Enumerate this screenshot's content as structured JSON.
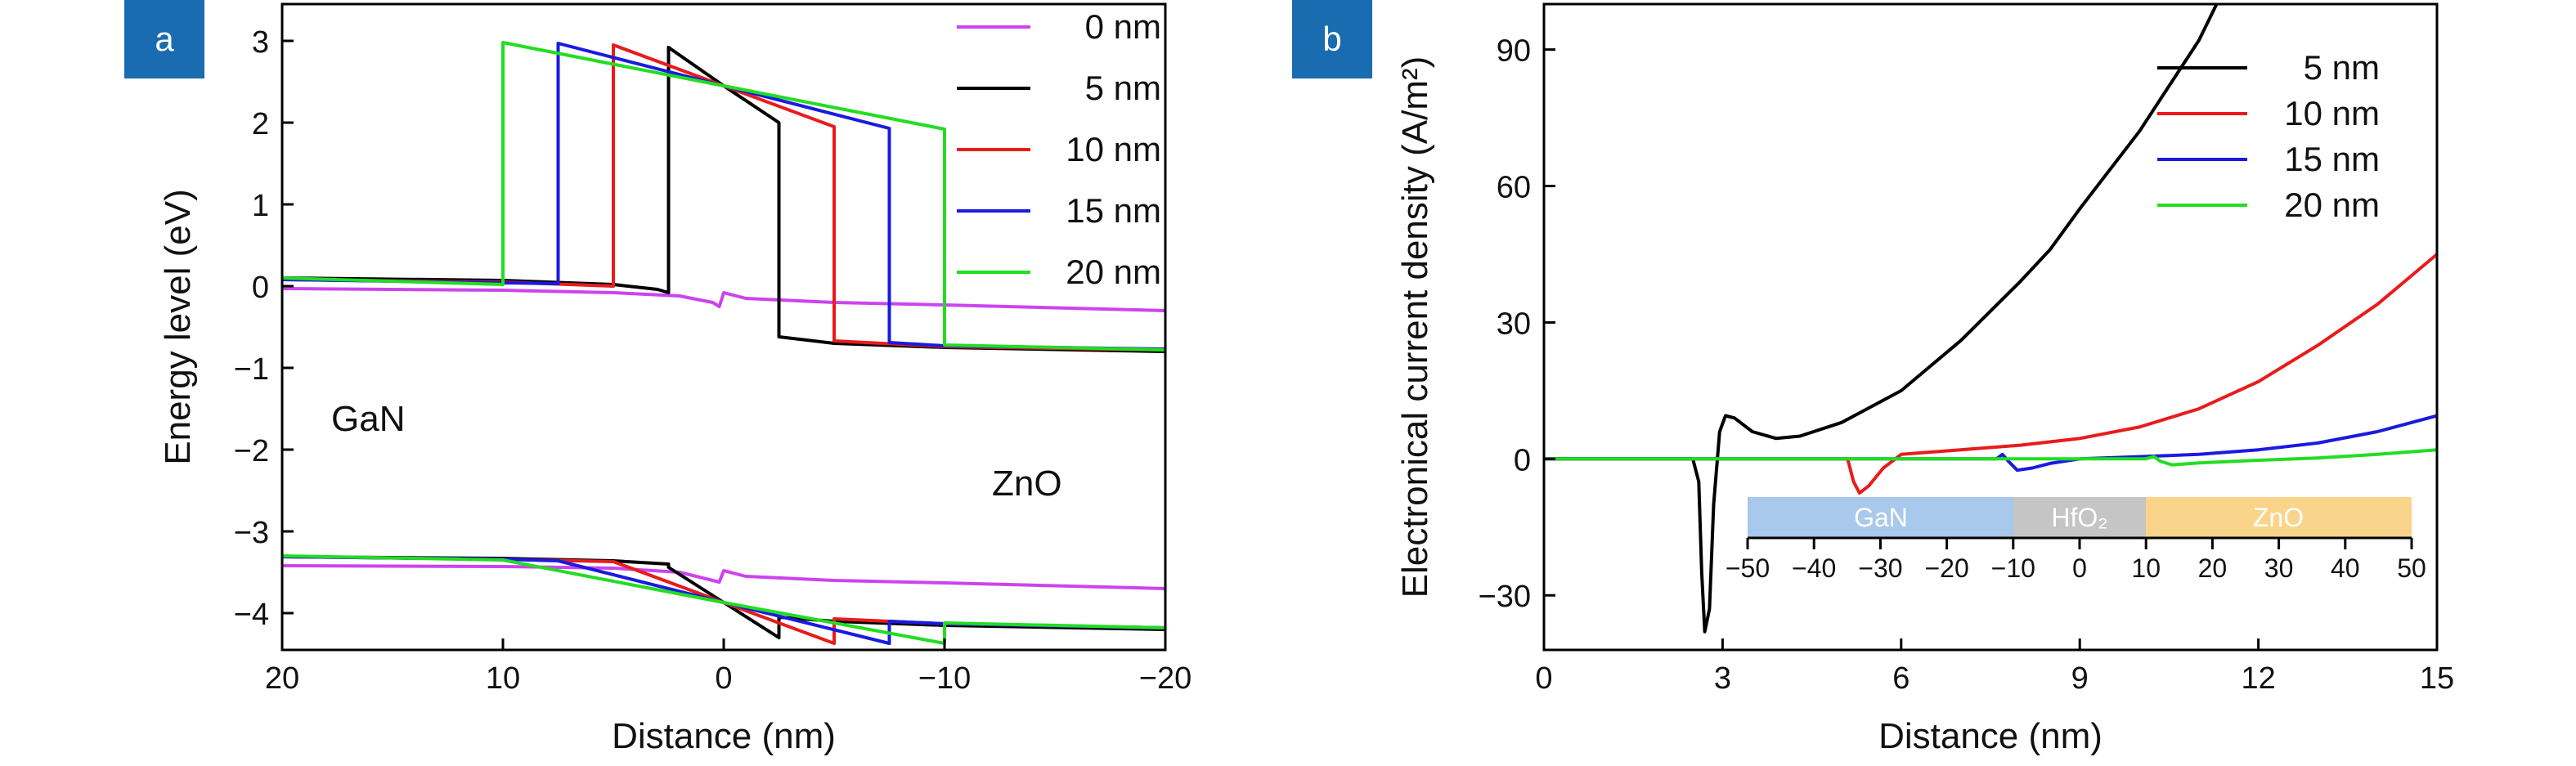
{
  "colors": {
    "badge": "#1A6CB0",
    "axis": "#000000",
    "gan_region": "#A8C8EC",
    "hfo2_region": "#C5C5C5",
    "zno_region": "#FAD48A"
  },
  "panel_a": {
    "badge": "a",
    "xlabel": "Distance (nm)",
    "ylabel": "Energy level (eV)",
    "left_material": "GaN",
    "right_material": "ZnO",
    "xticks": [
      "20",
      "10",
      "0",
      "−10",
      "−20"
    ],
    "yticks": [
      "3",
      "2",
      "1",
      "0",
      "−1",
      "−2",
      "−3",
      "−4"
    ],
    "legend": [
      {
        "label": "0 nm",
        "color": "#CC44EE"
      },
      {
        "label": "5 nm",
        "color": "#000000"
      },
      {
        "label": "10 nm",
        "color": "#E81C1C"
      },
      {
        "label": "15 nm",
        "color": "#1A1AE0"
      },
      {
        "label": "20 nm",
        "color": "#22DD22"
      }
    ]
  },
  "panel_b": {
    "badge": "b",
    "xlabel": "Distance (nm)",
    "ylabel": "Electronical current density (A/m²)",
    "xticks": [
      "0",
      "3",
      "6",
      "9",
      "12",
      "15"
    ],
    "yticks": [
      "90",
      "60",
      "30",
      "0",
      "−30"
    ],
    "legend": [
      {
        "label": "5 nm",
        "color": "#000000"
      },
      {
        "label": "10 nm",
        "color": "#E81C1C"
      },
      {
        "label": "15 nm",
        "color": "#1A1AE0"
      },
      {
        "label": "20 nm",
        "color": "#22DD22"
      }
    ],
    "inset": {
      "regions": [
        "GaN",
        "HfO₂",
        "ZnO"
      ],
      "ticks": [
        "−50",
        "−40",
        "−30",
        "−20",
        "−10",
        "0",
        "10",
        "20",
        "30",
        "40",
        "50"
      ]
    }
  },
  "chart_data": [
    {
      "type": "line",
      "title": "",
      "xlabel": "Distance (nm)",
      "ylabel": "Energy level (eV)",
      "xlim": [
        20,
        -20
      ],
      "ylim": [
        -4.45,
        3.45
      ],
      "grid": false,
      "legend_position": "top-right",
      "series": [
        {
          "name": "0 nm",
          "band": "conduction",
          "points": [
            [
              20,
              -0.03
            ],
            [
              10,
              -0.05
            ],
            [
              5,
              -0.08
            ],
            [
              2,
              -0.12
            ],
            [
              0.5,
              -0.2
            ],
            [
              0.2,
              -0.25
            ],
            [
              0,
              -0.08
            ],
            [
              -1,
              -0.15
            ],
            [
              -5,
              -0.2
            ],
            [
              -10,
              -0.23
            ],
            [
              -20,
              -0.3
            ]
          ]
        },
        {
          "name": "0 nm",
          "band": "valence",
          "points": [
            [
              20,
              -3.42
            ],
            [
              10,
              -3.43
            ],
            [
              5,
              -3.45
            ],
            [
              2,
              -3.5
            ],
            [
              0.5,
              -3.6
            ],
            [
              0.2,
              -3.62
            ],
            [
              0,
              -3.48
            ],
            [
              -1,
              -3.55
            ],
            [
              -5,
              -3.6
            ],
            [
              -10,
              -3.63
            ],
            [
              -20,
              -3.7
            ]
          ]
        },
        {
          "name": "5 nm",
          "band": "conduction",
          "points": [
            [
              20,
              0.1
            ],
            [
              10,
              0.07
            ],
            [
              5,
              0.02
            ],
            [
              3,
              -0.04
            ],
            [
              2.5,
              -0.08
            ],
            [
              2.5,
              2.92
            ],
            [
              0,
              2.45
            ],
            [
              -2.5,
              2.0
            ],
            [
              -2.5,
              -0.62
            ],
            [
              -5,
              -0.7
            ],
            [
              -10,
              -0.75
            ],
            [
              -20,
              -0.8
            ]
          ]
        },
        {
          "name": "5 nm",
          "band": "valence",
          "points": [
            [
              20,
              -3.31
            ],
            [
              10,
              -3.33
            ],
            [
              5,
              -3.36
            ],
            [
              2.5,
              -3.4
            ],
            [
              2.5,
              -3.44
            ],
            [
              0,
              -3.87
            ],
            [
              -2.5,
              -4.3
            ],
            [
              -2.5,
              -4.05
            ],
            [
              -5,
              -4.1
            ],
            [
              -10,
              -4.15
            ],
            [
              -20,
              -4.2
            ]
          ]
        },
        {
          "name": "10 nm",
          "band": "conduction",
          "points": [
            [
              20,
              0.08
            ],
            [
              10,
              0.05
            ],
            [
              5,
              0.0
            ],
            [
              5,
              2.95
            ],
            [
              0,
              2.45
            ],
            [
              -5,
              1.95
            ],
            [
              -5,
              -0.67
            ],
            [
              -10,
              -0.74
            ],
            [
              -20,
              -0.78
            ]
          ]
        },
        {
          "name": "10 nm",
          "band": "valence",
          "points": [
            [
              20,
              -3.31
            ],
            [
              10,
              -3.34
            ],
            [
              5,
              -3.37
            ],
            [
              0,
              -3.87
            ],
            [
              -5,
              -4.37
            ],
            [
              -5,
              -4.07
            ],
            [
              -10,
              -4.13
            ],
            [
              -20,
              -4.18
            ]
          ]
        },
        {
          "name": "15 nm",
          "band": "conduction",
          "points": [
            [
              20,
              0.08
            ],
            [
              10,
              0.04
            ],
            [
              7.5,
              0.03
            ],
            [
              7.5,
              2.97
            ],
            [
              0,
              2.45
            ],
            [
              -7.5,
              1.93
            ],
            [
              -7.5,
              -0.69
            ],
            [
              -10,
              -0.73
            ],
            [
              -20,
              -0.77
            ]
          ]
        },
        {
          "name": "15 nm",
          "band": "valence",
          "points": [
            [
              20,
              -3.31
            ],
            [
              10,
              -3.34
            ],
            [
              7.5,
              -3.36
            ],
            [
              0,
              -3.87
            ],
            [
              -7.5,
              -4.37
            ],
            [
              -7.5,
              -4.1
            ],
            [
              -10,
              -4.13
            ],
            [
              -20,
              -4.18
            ]
          ]
        },
        {
          "name": "20 nm",
          "band": "conduction",
          "points": [
            [
              20,
              0.1
            ],
            [
              10,
              0.02
            ],
            [
              10,
              2.98
            ],
            [
              0,
              2.45
            ],
            [
              -10,
              1.92
            ],
            [
              -10,
              -0.72
            ],
            [
              -20,
              -0.78
            ]
          ]
        },
        {
          "name": "20 nm",
          "band": "valence",
          "points": [
            [
              20,
              -3.3
            ],
            [
              10,
              -3.35
            ],
            [
              0,
              -3.87
            ],
            [
              -10,
              -4.37
            ],
            [
              -10,
              -4.12
            ],
            [
              -20,
              -4.18
            ]
          ]
        }
      ]
    },
    {
      "type": "line",
      "title": "",
      "xlabel": "Distance (nm)",
      "ylabel": "Electronical current density (A/m²)",
      "xlim": [
        0,
        15
      ],
      "ylim": [
        -42,
        100
      ],
      "grid": false,
      "legend_position": "top-right",
      "series": [
        {
          "name": "5 nm",
          "points": [
            [
              0,
              0
            ],
            [
              2.5,
              0
            ],
            [
              2.6,
              -5
            ],
            [
              2.65,
              -25
            ],
            [
              2.7,
              -38
            ],
            [
              2.78,
              -33
            ],
            [
              2.85,
              -10
            ],
            [
              2.95,
              6
            ],
            [
              3.05,
              9.5
            ],
            [
              3.2,
              9
            ],
            [
              3.5,
              6
            ],
            [
              3.9,
              4.5
            ],
            [
              4.3,
              5
            ],
            [
              5,
              8
            ],
            [
              6,
              15
            ],
            [
              7,
              26
            ],
            [
              8,
              39
            ],
            [
              8.5,
              46
            ],
            [
              9,
              55
            ],
            [
              10,
              72
            ],
            [
              11,
              92
            ],
            [
              11.3,
              100
            ]
          ]
        },
        {
          "name": "10 nm",
          "points": [
            [
              0,
              0
            ],
            [
              5.1,
              0
            ],
            [
              5.2,
              -5
            ],
            [
              5.3,
              -7.5
            ],
            [
              5.45,
              -6
            ],
            [
              5.7,
              -2
            ],
            [
              6,
              1
            ],
            [
              7,
              2
            ],
            [
              8,
              3
            ],
            [
              9,
              4.5
            ],
            [
              10,
              7
            ],
            [
              11,
              11
            ],
            [
              12,
              17
            ],
            [
              13,
              25
            ],
            [
              14,
              34
            ],
            [
              15,
              45
            ]
          ]
        },
        {
          "name": "15 nm",
          "points": [
            [
              0,
              0
            ],
            [
              7.6,
              0
            ],
            [
              7.7,
              1
            ],
            [
              7.8,
              -0.5
            ],
            [
              7.95,
              -2.5
            ],
            [
              8.2,
              -2
            ],
            [
              8.5,
              -1
            ],
            [
              9,
              0
            ],
            [
              10,
              0.5
            ],
            [
              11,
              1
            ],
            [
              12,
              2
            ],
            [
              13,
              3.5
            ],
            [
              14,
              6
            ],
            [
              15,
              9.5
            ]
          ]
        },
        {
          "name": "20 nm",
          "points": [
            [
              0,
              0
            ],
            [
              10.1,
              0
            ],
            [
              10.25,
              0.5
            ],
            [
              10.35,
              -0.5
            ],
            [
              10.55,
              -1.3
            ],
            [
              11,
              -0.9
            ],
            [
              12,
              -0.3
            ],
            [
              13,
              0.2
            ],
            [
              14,
              1
            ],
            [
              15,
              2
            ]
          ]
        }
      ]
    }
  ]
}
